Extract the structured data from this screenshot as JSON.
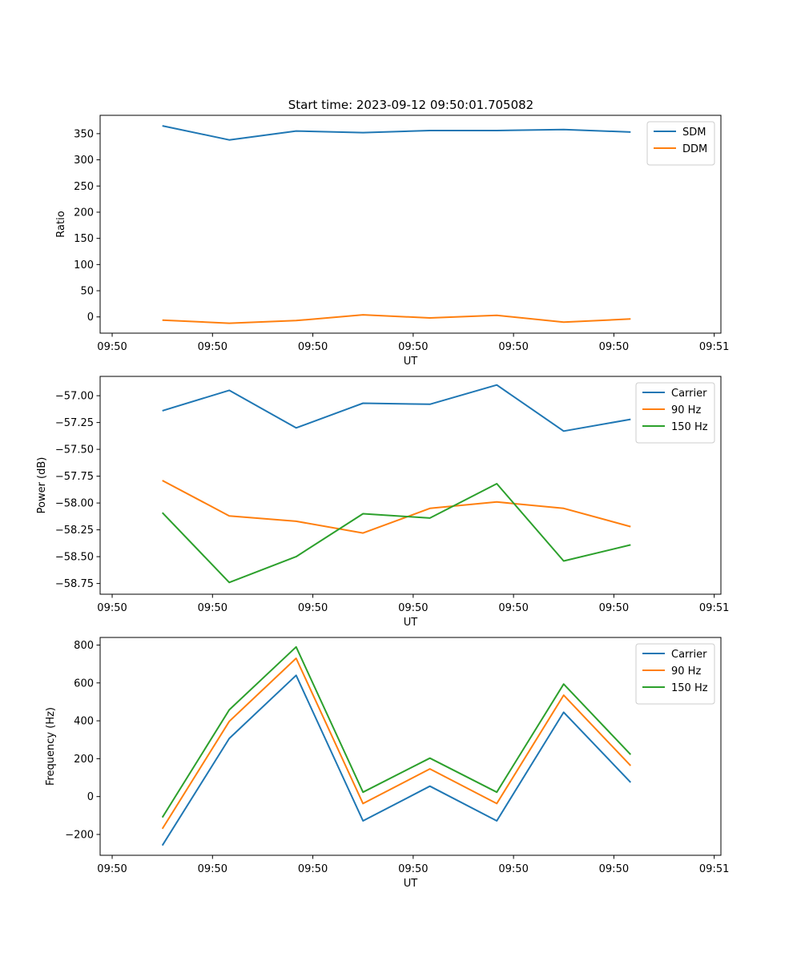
{
  "figure": {
    "title": "Start time: 2023-09-12 09:50:01.705082"
  },
  "chart_data": [
    {
      "type": "line",
      "xlabel": "UT",
      "ylabel": "Ratio",
      "ylim": [
        -31,
        385
      ],
      "xlim": [
        -0.18,
        9.1
      ],
      "yticks": [
        0,
        50,
        100,
        150,
        200,
        250,
        300,
        350
      ],
      "xtick_positions": [
        0,
        1.5,
        3,
        4.5,
        6,
        7.5,
        9
      ],
      "xtick_labels": [
        "09:50",
        "09:50",
        "09:50",
        "09:50",
        "09:50",
        "09:50",
        "09:51"
      ],
      "legend": "top-right",
      "x": [
        0.75,
        1.75,
        2.75,
        3.75,
        4.75,
        5.75,
        6.75,
        7.75
      ],
      "series": [
        {
          "name": "SDM",
          "color": "#1f77b4",
          "values": [
            365,
            338,
            355,
            352,
            356,
            356,
            358,
            353
          ]
        },
        {
          "name": "DDM",
          "color": "#ff7f0e",
          "values": [
            -6,
            -12,
            -7,
            4,
            -2,
            3,
            -10,
            -4
          ]
        }
      ]
    },
    {
      "type": "line",
      "xlabel": "UT",
      "ylabel": "Power (dB)",
      "ylim": [
        -58.85,
        -56.82
      ],
      "xlim": [
        -0.18,
        9.1
      ],
      "yticks": [
        -57.0,
        -57.25,
        -57.5,
        -57.75,
        -58.0,
        -58.25,
        -58.5,
        -58.75
      ],
      "ytick_labels": [
        "−57.00",
        "−57.25",
        "−57.50",
        "−57.75",
        "−58.00",
        "−58.25",
        "−58.50",
        "−58.75"
      ],
      "xtick_positions": [
        0,
        1.5,
        3,
        4.5,
        6,
        7.5,
        9
      ],
      "xtick_labels": [
        "09:50",
        "09:50",
        "09:50",
        "09:50",
        "09:50",
        "09:50",
        "09:51"
      ],
      "legend": "top-right",
      "x": [
        0.75,
        1.75,
        2.75,
        3.75,
        4.75,
        5.75,
        6.75,
        7.75
      ],
      "series": [
        {
          "name": "Carrier",
          "color": "#1f77b4",
          "values": [
            -57.14,
            -56.95,
            -57.3,
            -57.07,
            -57.08,
            -56.9,
            -57.33,
            -57.22
          ]
        },
        {
          "name": "90 Hz",
          "color": "#ff7f0e",
          "values": [
            -57.79,
            -58.12,
            -58.17,
            -58.28,
            -58.05,
            -57.99,
            -58.05,
            -58.22
          ]
        },
        {
          "name": "150 Hz",
          "color": "#2ca02c",
          "values": [
            -58.09,
            -58.74,
            -58.5,
            -58.1,
            -58.14,
            -57.82,
            -58.54,
            -58.39
          ]
        }
      ]
    },
    {
      "type": "line",
      "xlabel": "UT",
      "ylabel": "Frequency (Hz)",
      "ylim": [
        -310,
        840
      ],
      "xlim": [
        -0.18,
        9.1
      ],
      "yticks": [
        -200,
        0,
        200,
        400,
        600,
        800
      ],
      "ytick_labels": [
        "−200",
        "0",
        "200",
        "400",
        "600",
        "800"
      ],
      "xtick_positions": [
        0,
        1.5,
        3,
        4.5,
        6,
        7.5,
        9
      ],
      "xtick_labels": [
        "09:50",
        "09:50",
        "09:50",
        "09:50",
        "09:50",
        "09:50",
        "09:51"
      ],
      "legend": "top-right",
      "x": [
        0.75,
        1.75,
        2.75,
        3.75,
        4.75,
        5.75,
        6.75,
        7.75
      ],
      "series": [
        {
          "name": "Carrier",
          "color": "#1f77b4",
          "values": [
            -258,
            307,
            640,
            -128,
            55,
            -128,
            445,
            75
          ]
        },
        {
          "name": "90 Hz",
          "color": "#ff7f0e",
          "values": [
            -170,
            397,
            730,
            -37,
            146,
            -37,
            535,
            163
          ]
        },
        {
          "name": "150 Hz",
          "color": "#2ca02c",
          "values": [
            -110,
            458,
            790,
            23,
            203,
            23,
            594,
            222
          ]
        }
      ]
    }
  ]
}
